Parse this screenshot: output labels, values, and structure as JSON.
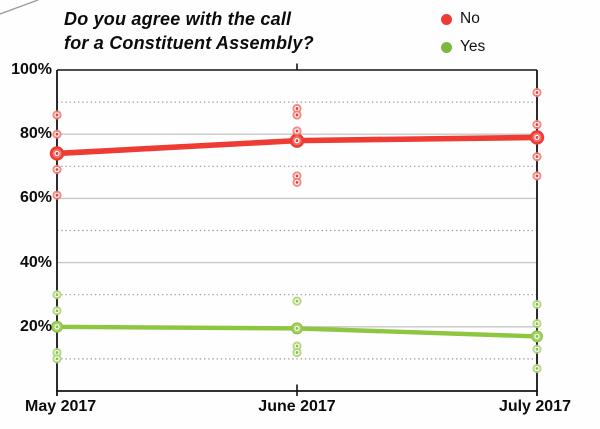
{
  "title": {
    "line1": "Do you agree with the call",
    "line2": "for a Constituent Assembly?"
  },
  "legend": [
    {
      "label": "No",
      "color": "#ee3b33"
    },
    {
      "label": "Yes",
      "color": "#7cb83e"
    }
  ],
  "chart_data": {
    "type": "line",
    "title": "Do you agree with the call for a Constituent Assembly?",
    "x": [
      "May 2017",
      "June 2017",
      "July 2017"
    ],
    "series": [
      {
        "name": "No",
        "color": "#ee3b33",
        "marker_ring": "#f37c75",
        "marker_dot": "#e83e36",
        "line_width": 5.6,
        "big_radius": 7.2,
        "values": [
          74,
          78,
          79
        ],
        "scatter": [
          [
            86,
            80,
            74,
            69,
            61
          ],
          [
            88,
            86,
            81,
            78,
            67,
            65
          ],
          [
            93,
            83,
            79,
            73,
            67
          ]
        ]
      },
      {
        "name": "Yes",
        "color": "#8dc63f",
        "marker_ring": "#aed374",
        "marker_dot": "#84c33d",
        "line_width": 4.4,
        "big_radius": 6.0,
        "values": [
          20,
          19.5,
          17
        ],
        "scatter": [
          [
            30,
            25,
            20,
            12,
            10
          ],
          [
            28,
            19.5,
            14,
            12
          ],
          [
            27,
            21,
            17,
            13,
            7
          ]
        ]
      }
    ],
    "ylim": [
      0,
      100
    ],
    "ytick_values": [
      100,
      80,
      60,
      40,
      20
    ],
    "ytick_labels": [
      "100%",
      "80%",
      "60%",
      "40%",
      "20%"
    ],
    "grid": {
      "solid": [
        20,
        40,
        60,
        80
      ],
      "dotted": [
        10,
        30,
        50,
        70,
        90
      ]
    },
    "grid_solid_color": "#c7c7c7",
    "grid_dotted_color": "#9b9b9b",
    "frame_color": "#141414",
    "legend_position": "top-right"
  }
}
